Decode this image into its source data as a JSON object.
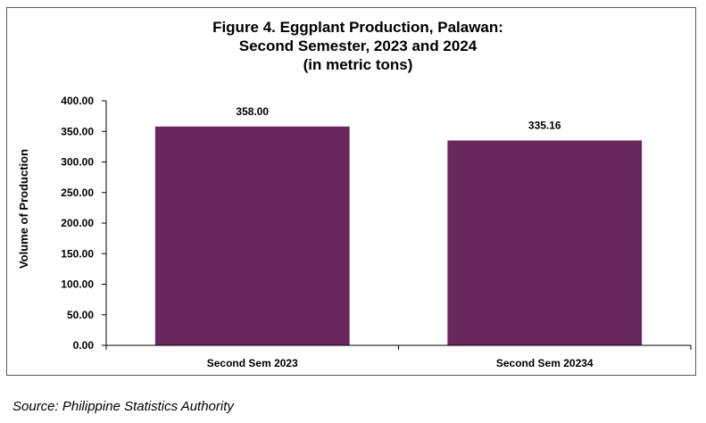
{
  "chart_data": {
    "type": "bar",
    "title_lines": [
      "Figure 4. Eggplant Production, Palawan:",
      "Second Semester, 2023 and 2024",
      "(in metric tons)"
    ],
    "xlabel": "",
    "ylabel": "Volume of Production",
    "categories": [
      "Second Sem 2023",
      "Second Sem 20234"
    ],
    "values": [
      358.0,
      335.16
    ],
    "data_labels": [
      "358.00",
      "335.16"
    ],
    "ylim": [
      0,
      400
    ],
    "yticks": [
      0,
      50,
      100,
      150,
      200,
      250,
      300,
      350,
      400
    ],
    "ytick_labels": [
      "0.00",
      "50.00",
      "100.00",
      "150.00",
      "200.00",
      "250.00",
      "300.00",
      "350.00",
      "400.00"
    ],
    "grid": false,
    "legend": "none",
    "bar_color": "#69285d"
  },
  "source": "Source: Philippine Statistics Authority"
}
